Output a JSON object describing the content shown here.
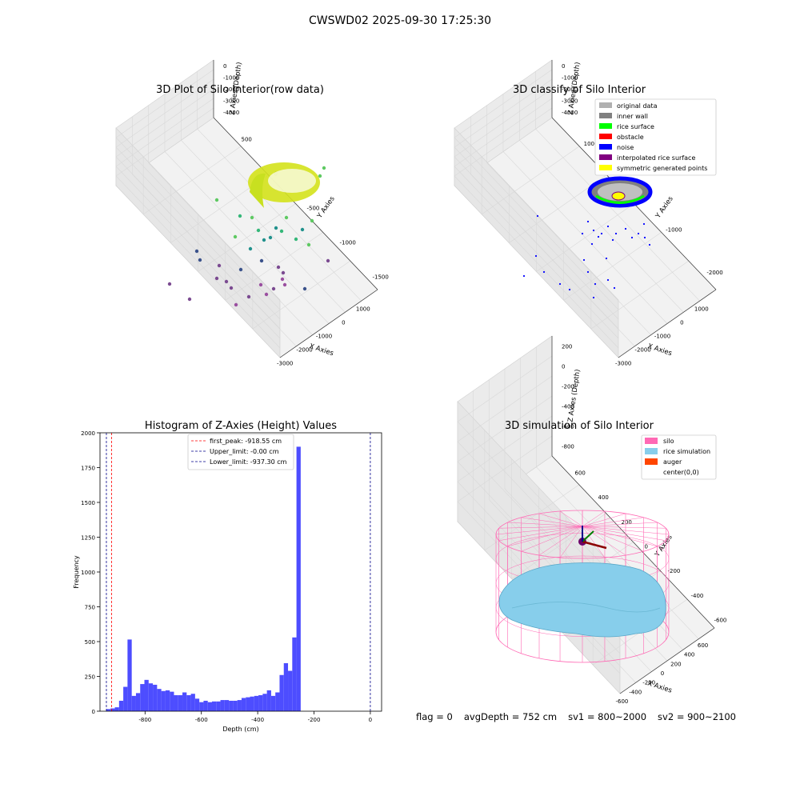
{
  "figure": {
    "suptitle": "CWSWD02 2025-09-30 17:25:30",
    "footer": {
      "flag": "flag = 0",
      "avg_depth": "avgDepth = 752 cm",
      "sv1": "sv1 = 800~2000",
      "sv2": "sv2 = 900~2100"
    }
  },
  "colors": {
    "hist_bar": "#4d4dff",
    "first_peak_line": "#ff0000",
    "limit_lines": "#00008b",
    "silo_wire": "#ff69b4",
    "rice_sim": "#87ceeb",
    "auger": "#ff4500",
    "original": "#b0b0b0",
    "inner_wall": "#808080",
    "rice_surface": "#00ff00",
    "obstacle": "#ff0000",
    "noise": "#0000ff",
    "interp": "#800080",
    "sym": "#ffff00"
  },
  "chart_data": [
    {
      "type": "scatter",
      "subtype": "3d",
      "title": "3D Plot of Silo Interior(row data)",
      "xlabel": "X Axies",
      "ylabel": "Y Axies",
      "zlabel": "Z Axies (Depth)",
      "xticks": [
        "-3000",
        "-2000",
        "-1000",
        "0",
        "1000"
      ],
      "yticks": [
        "500",
        "0",
        "-500",
        "-1000",
        "-1500"
      ],
      "zticks": [
        "0",
        "-1000",
        "-2000",
        "-3000",
        "-4000"
      ],
      "colormap": "viridis",
      "points": [
        {
          "x": -200,
          "y": 300,
          "z": -500
        },
        {
          "x": 100,
          "y": 200,
          "z": -600
        },
        {
          "x": -400,
          "y": 100,
          "z": -800
        },
        {
          "x": -50,
          "y": -100,
          "z": -2600
        },
        {
          "x": -150,
          "y": -200,
          "z": -2900
        },
        {
          "x": 100,
          "y": 0,
          "z": -3000
        },
        {
          "x": -1500,
          "y": -600,
          "z": -3800
        },
        {
          "x": -800,
          "y": -700,
          "z": -4200
        },
        {
          "x": 200,
          "y": -300,
          "z": -4300
        }
      ]
    },
    {
      "type": "scatter",
      "subtype": "3d",
      "title": "3D classify of Silo Interior",
      "xlabel": "X Axies",
      "ylabel": "Y Axies",
      "zlabel": "Z Axies (Depth)",
      "xticks": [
        "-3000",
        "-2000",
        "-1000",
        "0",
        "1000"
      ],
      "yticks": [
        "1000",
        "0",
        "-1000",
        "-2000"
      ],
      "zticks": [
        "0",
        "-1000",
        "-2000",
        "-3000",
        "-4000"
      ],
      "legend": [
        {
          "label": "original data",
          "color": "#b0b0b0"
        },
        {
          "label": "inner wall",
          "color": "#808080"
        },
        {
          "label": "rice surface",
          "color": "#00ff00"
        },
        {
          "label": "obstacle",
          "color": "#ff0000"
        },
        {
          "label": "noise",
          "color": "#0000ff"
        },
        {
          "label": "interpolated rice surface",
          "color": "#800080"
        },
        {
          "label": "symmetric generated points",
          "color": "#ffff00"
        }
      ],
      "legend_loc": "upper right"
    },
    {
      "type": "bar",
      "subtype": "histogram",
      "title": "Histogram of Z-Axies (Height) Values",
      "xlabel": "Depth (cm)",
      "ylabel": "Frequency",
      "xlim": [
        -960,
        40
      ],
      "ylim": [
        0,
        2000
      ],
      "xticks": [
        -800,
        -600,
        -400,
        -200,
        0
      ],
      "yticks": [
        0,
        250,
        500,
        750,
        1000,
        1250,
        1500,
        1750,
        2000
      ],
      "bin_width": 15,
      "bin_start": -937.3,
      "values": [
        15,
        20,
        28,
        75,
        175,
        515,
        110,
        130,
        195,
        225,
        200,
        190,
        160,
        145,
        150,
        140,
        115,
        115,
        135,
        115,
        125,
        90,
        65,
        75,
        65,
        70,
        70,
        80,
        80,
        75,
        75,
        80,
        95,
        100,
        105,
        110,
        115,
        125,
        150,
        110,
        135,
        260,
        345,
        290,
        530,
        1900
      ],
      "vlines": [
        {
          "label": "first_peak: -918.55 cm",
          "x": -918.55,
          "color": "#ff0000"
        },
        {
          "label": "Upper_limit: -0.00 cm",
          "x": 0,
          "color": "#00008b"
        },
        {
          "label": "Lower_limit: -937.30 cm",
          "x": -937.3,
          "color": "#00008b"
        }
      ],
      "legend_loc": "upper center"
    },
    {
      "type": "area",
      "subtype": "3d-surface",
      "title": "3D simulation of Silo Interior",
      "xlabel": "X Axies",
      "ylabel": "Y Axies",
      "zlabel": "Z Axies (Depth)",
      "xticks": [
        "-600",
        "-400",
        "-200",
        "0",
        "200",
        "400",
        "600"
      ],
      "yticks": [
        "600",
        "400",
        "200",
        "0",
        "-200",
        "-400",
        "-600"
      ],
      "zticks": [
        "200",
        "0",
        "-200",
        "-400",
        "-600",
        "-800"
      ],
      "legend": [
        {
          "label": "silo",
          "color": "#ff69b4"
        },
        {
          "label": "rice simulation",
          "color": "#87ceeb"
        },
        {
          "label": "auger",
          "color": "#ff4500"
        },
        {
          "label": "center(0,0)",
          "color": "none"
        }
      ],
      "legend_loc": "upper right"
    }
  ]
}
